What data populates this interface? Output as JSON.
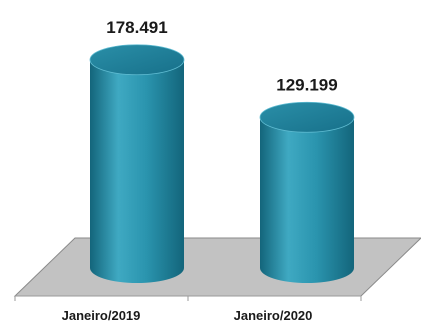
{
  "chart_data": {
    "type": "bar",
    "style": "3d-cylinder",
    "categories": [
      "Janeiro/2019",
      "Janeiro/2020"
    ],
    "values": [
      178491,
      129199
    ],
    "value_labels": [
      "178.491",
      "129.199"
    ],
    "ylim": [
      0,
      180000
    ],
    "grid": false,
    "legend": "none",
    "colors": {
      "bar_light": "#3fa9c2",
      "bar_mid": "#268ca6",
      "bar_dark": "#13657b",
      "top_fill": "#1e7d96",
      "floor": "#c2c2c2",
      "floor_edge": "#8a8a8a",
      "axis": "#9a9a9a"
    }
  }
}
